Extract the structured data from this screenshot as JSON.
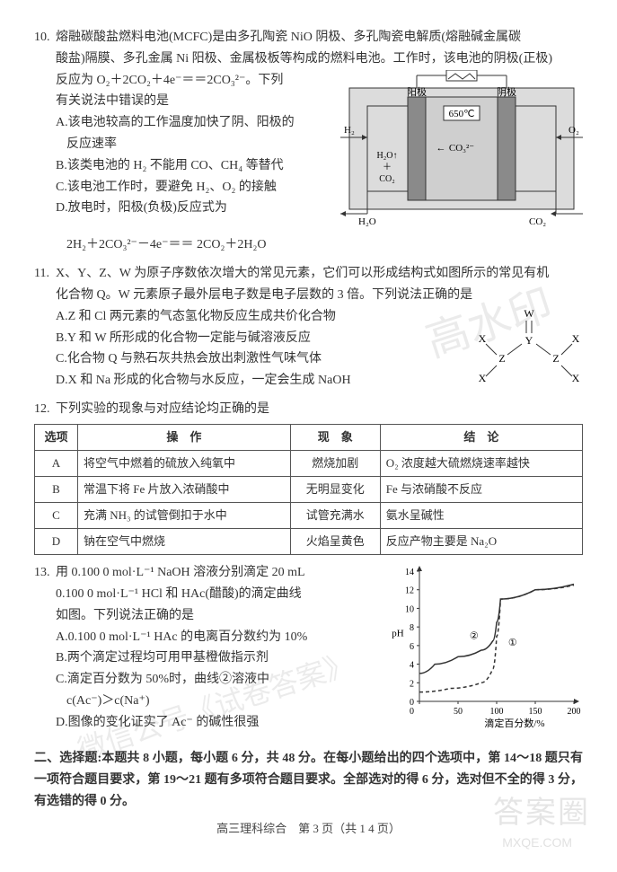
{
  "q10": {
    "num": "10.",
    "stem1": "熔融碳酸盐燃料电池(MCFC)是由多孔陶瓷 NiO 阴极、多孔陶瓷电解质(熔融碱金属碳",
    "stem2": "酸盐)隔膜、多孔金属 Ni 阳极、金属极板等构成的燃料电池。工作时，该电池的阴极(正极)",
    "stem3": "反应为 O₂＋2CO₂＋4e⁻＝＝2CO₃²⁻。下列",
    "stem4": "有关说法中错误的是",
    "optA": "A.该电池较高的工作温度加快了阴、阳极的",
    "optA2": "反应速率",
    "optB": "B.该类电池的 H₂ 不能用 CO、CH₄ 等替代",
    "optC": "C.该电池工作时，要避免 H₂、O₂ 的接触",
    "optD": "D.放电时，阳极(负极)反应式为",
    "optD2": "2H₂＋2CO₃²⁻－4e⁻＝＝ 2CO₂＋2H₂O",
    "diagram": {
      "anode": "阳极",
      "cathode": "阴极",
      "temp": "650℃",
      "h2": "H₂",
      "o2": "O₂",
      "h2o_up": "H₂O↑",
      "co2_up": "CO₂",
      "h2o": "H₂O",
      "co2": "CO₂",
      "co32": "CO₃²⁻",
      "arrow": "←",
      "colors": {
        "outer": "#dcdcdc",
        "electrode": "#8a8a8a",
        "electrolyte": "#cfcfcf",
        "line": "#333333"
      }
    }
  },
  "q11": {
    "num": "11.",
    "stem1": "X、Y、Z、W 为原子序数依次增大的常见元素，它们可以形成结构式如图所示的常见有机",
    "stem2": "化合物 Q。W 元素原子最外层电子数是电子层数的 3 倍。下列说法正确的是",
    "optA": "A.Z 和 Cl 两元素的气态氢化物反应生成共价化合物",
    "optB": "B.Y 和 W 所形成的化合物一定能与碱溶液反应",
    "optC": "C.化合物 Q 与熟石灰共热会放出刺激性气味气体",
    "optD": "D.X 和 Na 形成的化合物与水反应，一定会生成 NaOH",
    "struct": {
      "X": "X",
      "Y": "Y",
      "Z": "Z",
      "W": "W"
    }
  },
  "q12": {
    "num": "12.",
    "stem": "下列实验的现象与对应结论均正确的是",
    "table": {
      "headers": [
        "选项",
        "操　作",
        "现　象",
        "结　论"
      ],
      "rows": [
        [
          "A",
          "将空气中燃着的硫放入纯氧中",
          "燃烧加剧",
          "O₂ 浓度越大硫燃烧速率越快"
        ],
        [
          "B",
          "常温下将 Fe 片放入浓硝酸中",
          "无明显变化",
          "Fe 与浓硝酸不反应"
        ],
        [
          "C",
          "充满 NH₃ 的试管倒扣于水中",
          "试管充满水",
          "氨水呈碱性"
        ],
        [
          "D",
          "钠在空气中燃烧",
          "火焰呈黄色",
          "反应产物主要是 Na₂O"
        ]
      ],
      "colwidths": [
        "48px",
        "auto",
        "100px",
        "auto"
      ]
    }
  },
  "q13": {
    "num": "13.",
    "stem1": "用 0.100 0 mol·L⁻¹ NaOH 溶液分别滴定 20 mL",
    "stem2": "0.100 0 mol·L⁻¹ HCl 和 HAc(醋酸)的滴定曲线",
    "stem3": "如图。下列说法正确的是",
    "optA": "A.0.100 0 mol·L⁻¹ HAc 的电离百分数约为 10%",
    "optB": "B.两个滴定过程均可用甲基橙做指示剂",
    "optC": "C.滴定百分数为 50%时，曲线②溶液中",
    "optC2": "c(Ac⁻)＞c(Na⁺)",
    "optD": "D.图像的变化证实了 Ac⁻ 的碱性很强",
    "chart": {
      "ylabel": "pH",
      "xlabel": "滴定百分数/%",
      "xlim": [
        0,
        200
      ],
      "ylim": [
        0,
        14
      ],
      "yticks": [
        0,
        2,
        4,
        6,
        8,
        10,
        12,
        14
      ],
      "xticks": [
        0,
        50,
        100,
        150,
        200
      ],
      "line1_label": "①",
      "line2_label": "②",
      "colors": {
        "axis": "#333333",
        "grid": "#333333",
        "line1": "#333333",
        "line2": "#333333",
        "bg": "#ffffff"
      },
      "series1": [
        [
          0,
          1
        ],
        [
          40,
          1.4
        ],
        [
          80,
          2
        ],
        [
          95,
          3.5
        ],
        [
          100,
          7
        ],
        [
          105,
          11
        ],
        [
          150,
          12
        ],
        [
          200,
          12.5
        ]
      ],
      "series2": [
        [
          0,
          3
        ],
        [
          20,
          4
        ],
        [
          50,
          4.8
        ],
        [
          80,
          5.5
        ],
        [
          95,
          6.5
        ],
        [
          100,
          8.5
        ],
        [
          105,
          11
        ],
        [
          150,
          12
        ],
        [
          200,
          12.6
        ]
      ]
    }
  },
  "section2": "二、选择题:本题共 8 小题，每小题 6 分，共 48 分。在每小题给出的四个选项中，第 14～18 题只有一项符合题目要求，第 19～21 题有多项符合题目要求。全部选对的得 6 分，选对但不全的得 3 分，有选错的得 0 分。",
  "footer": "高三理科综合　第 3 页（共 1 4 页）",
  "watermarks": {
    "wm1": "高水印",
    "wm2": "微信公号《试卷答案》",
    "wm3": "答案圈",
    "wm4": "MXQE.COM"
  }
}
